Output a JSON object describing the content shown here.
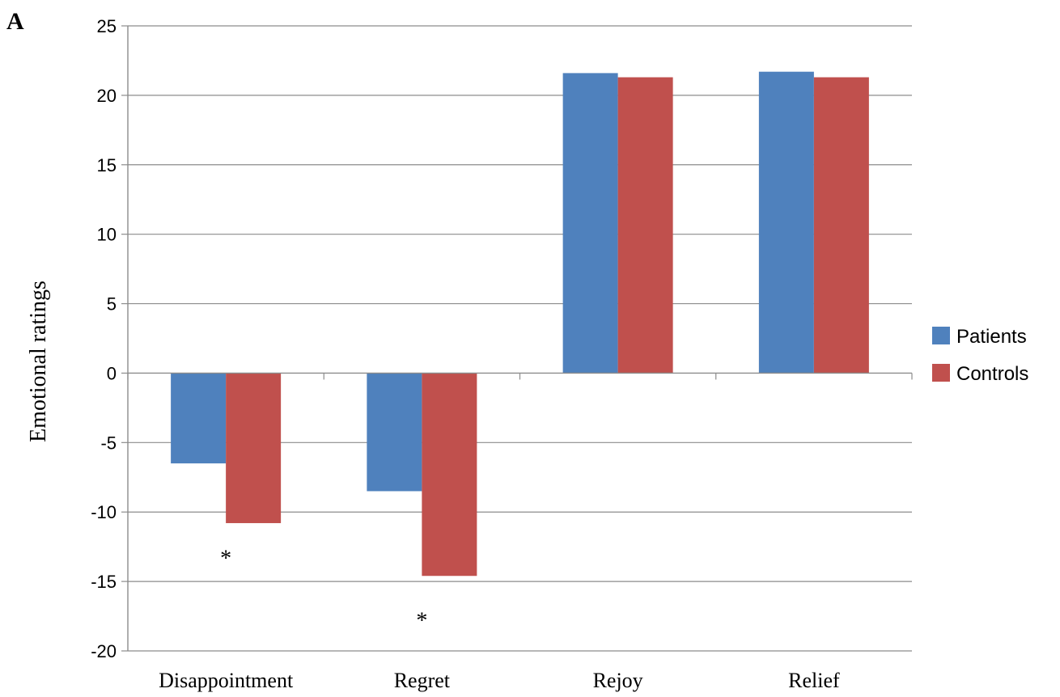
{
  "panel_label": "A",
  "colors": {
    "patients": "#4f81bd",
    "controls": "#c0504d",
    "grid": "#8c8c8c",
    "axis": "#8c8c8c"
  },
  "chart_data": {
    "type": "bar",
    "ylabel": "Emotional ratings",
    "xlabel": "",
    "ylim": [
      -20,
      25
    ],
    "yticks": [
      25,
      20,
      15,
      10,
      5,
      0,
      -5,
      -10,
      -15,
      -20
    ],
    "ytick_labels": [
      "25",
      "20",
      "15",
      "10",
      "5",
      "0",
      "-5",
      "-10",
      "-15",
      "-20"
    ],
    "grid": true,
    "legend_position": "right",
    "categories": [
      "Disappointment",
      "Regret",
      "Rejoy",
      "Relief"
    ],
    "series": [
      {
        "name": "Patients",
        "values": [
          -6.5,
          -8.5,
          21.6,
          21.7
        ]
      },
      {
        "name": "Controls",
        "values": [
          -10.8,
          -14.6,
          21.3,
          21.3
        ]
      }
    ],
    "annotations": [
      {
        "text": "*",
        "category": "Disappointment",
        "y": -12.8
      },
      {
        "text": "*",
        "category": "Regret",
        "y": -17.3
      }
    ]
  }
}
